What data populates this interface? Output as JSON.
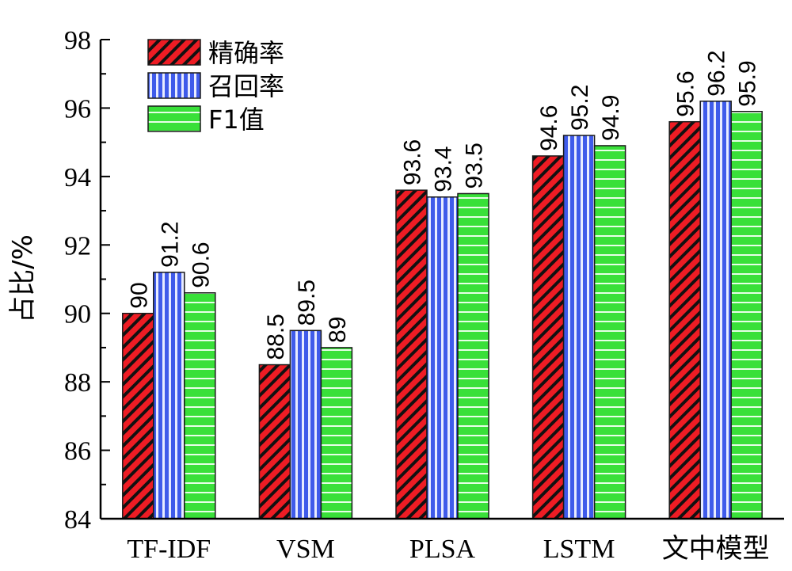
{
  "chart_data": {
    "type": "bar",
    "categories": [
      "TF-IDF",
      "VSM",
      "PLSA",
      "LSTM",
      "文中模型"
    ],
    "series": [
      {
        "name": "精确率",
        "values": [
          90,
          88.5,
          93.6,
          94.6,
          95.6
        ],
        "labels": [
          "90",
          "88.5",
          "93.6",
          "94.6",
          "95.6"
        ],
        "color": "#ee1c24",
        "pattern": "diagonal-hatch"
      },
      {
        "name": "召回率",
        "values": [
          91.2,
          89.5,
          93.4,
          95.2,
          96.2
        ],
        "labels": [
          "91.2",
          "89.5",
          "93.4",
          "95.2",
          "96.2"
        ],
        "color": "#3f5bea",
        "pattern": "vertical-stripes"
      },
      {
        "name": "F1值",
        "values": [
          90.6,
          89,
          93.5,
          94.9,
          95.9
        ],
        "labels": [
          "90.6",
          "89",
          "93.5",
          "94.9",
          "95.9"
        ],
        "color": "#39e039",
        "pattern": "horizontal-stripes"
      }
    ],
    "ylabel": "占比/%",
    "xlabel": "",
    "ylim": [
      84,
      98
    ],
    "yticks": [
      84,
      86,
      88,
      90,
      92,
      94,
      96,
      98
    ],
    "legend": "top-left",
    "grid": false
  }
}
